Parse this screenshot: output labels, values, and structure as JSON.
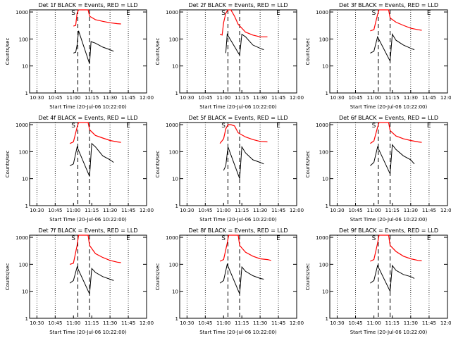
{
  "panels": [
    {
      "title": "Det 1f BLACK = Events, RED = LLD",
      "ylabel": "Counts/sec",
      "xlabel": "Start Time (20-Jul-06 10:22:00)",
      "red": [
        [
          11.0,
          300
        ],
        [
          11.03,
          320
        ],
        [
          11.05,
          900
        ],
        [
          11.07,
          1200
        ],
        [
          11.1,
          1200
        ],
        [
          11.2,
          1200
        ],
        [
          11.22,
          700
        ],
        [
          11.3,
          520
        ],
        [
          11.4,
          450
        ],
        [
          11.5,
          400
        ],
        [
          11.6,
          370
        ],
        [
          11.65,
          360
        ]
      ],
      "black": [
        [
          11.0,
          30
        ],
        [
          11.03,
          32
        ],
        [
          11.05,
          60
        ],
        [
          11.07,
          200
        ],
        [
          11.22,
          12
        ],
        [
          11.24,
          80
        ],
        [
          11.3,
          70
        ],
        [
          11.4,
          50
        ],
        [
          11.5,
          40
        ],
        [
          11.55,
          35
        ]
      ]
    },
    {
      "title": "Det 2f BLACK = Events, RED = LLD",
      "ylabel": "Counts/sec",
      "xlabel": "Start Time (20-Jul-06 10:22:00)",
      "red": [
        [
          10.95,
          150
        ],
        [
          10.98,
          140
        ],
        [
          11.0,
          400
        ],
        [
          11.03,
          900
        ],
        [
          11.06,
          1200
        ],
        [
          11.1,
          1200
        ],
        [
          11.15,
          700
        ],
        [
          11.2,
          350
        ],
        [
          11.3,
          180
        ],
        [
          11.4,
          140
        ],
        [
          11.5,
          120
        ],
        [
          11.6,
          120
        ]
      ],
      "black": [
        [
          11.03,
          30
        ],
        [
          11.05,
          150
        ],
        [
          11.22,
          25
        ],
        [
          11.25,
          150
        ],
        [
          11.3,
          120
        ],
        [
          11.4,
          60
        ],
        [
          11.5,
          45
        ],
        [
          11.55,
          40
        ]
      ]
    },
    {
      "title": "Det 3f BLACK = Events, RED = LLD",
      "ylabel": "Counts/sec",
      "xlabel": "Start Time (20-Jul-06 10:22:00)",
      "red": [
        [
          10.95,
          200
        ],
        [
          11.0,
          220
        ],
        [
          11.05,
          800
        ],
        [
          11.07,
          1200
        ],
        [
          11.1,
          1200
        ],
        [
          11.2,
          1200
        ],
        [
          11.22,
          600
        ],
        [
          11.3,
          420
        ],
        [
          11.4,
          320
        ],
        [
          11.5,
          250
        ],
        [
          11.6,
          220
        ],
        [
          11.65,
          210
        ]
      ],
      "black": [
        [
          10.95,
          30
        ],
        [
          11.0,
          35
        ],
        [
          11.05,
          120
        ],
        [
          11.22,
          15
        ],
        [
          11.25,
          150
        ],
        [
          11.3,
          90
        ],
        [
          11.4,
          60
        ],
        [
          11.5,
          45
        ],
        [
          11.55,
          40
        ]
      ]
    },
    {
      "title": "Det 4f BLACK = Events, RED = LLD",
      "ylabel": "Counts/sec",
      "xlabel": "Start Time (20-Jul-06 10:22:00)",
      "red": [
        [
          10.95,
          200
        ],
        [
          11.0,
          230
        ],
        [
          11.05,
          800
        ],
        [
          11.07,
          1200
        ],
        [
          11.1,
          1200
        ],
        [
          11.2,
          1200
        ],
        [
          11.22,
          650
        ],
        [
          11.3,
          400
        ],
        [
          11.4,
          320
        ],
        [
          11.5,
          260
        ],
        [
          11.6,
          230
        ],
        [
          11.65,
          220
        ]
      ],
      "black": [
        [
          10.95,
          30
        ],
        [
          11.0,
          35
        ],
        [
          11.05,
          150
        ],
        [
          11.22,
          12
        ],
        [
          11.25,
          200
        ],
        [
          11.3,
          150
        ],
        [
          11.4,
          70
        ],
        [
          11.5,
          50
        ],
        [
          11.55,
          40
        ]
      ]
    },
    {
      "title": "Det 5f BLACK = Events, RED = LLD",
      "ylabel": "Counts/sec",
      "xlabel": "Start Time (20-Jul-06 10:22:00)",
      "red": [
        [
          10.95,
          200
        ],
        [
          11.0,
          300
        ],
        [
          11.03,
          700
        ],
        [
          11.06,
          1000
        ],
        [
          11.1,
          1000
        ],
        [
          11.15,
          900
        ],
        [
          11.2,
          500
        ],
        [
          11.3,
          350
        ],
        [
          11.4,
          280
        ],
        [
          11.5,
          240
        ],
        [
          11.6,
          230
        ]
      ],
      "black": [
        [
          11.0,
          20
        ],
        [
          11.03,
          30
        ],
        [
          11.06,
          150
        ],
        [
          11.22,
          10
        ],
        [
          11.25,
          150
        ],
        [
          11.3,
          90
        ],
        [
          11.4,
          50
        ],
        [
          11.5,
          40
        ],
        [
          11.55,
          35
        ]
      ]
    },
    {
      "title": "Det 6f BLACK = Events, RED = LLD",
      "ylabel": "Counts/sec",
      "xlabel": "Start Time (20-Jul-06 10:22:00)",
      "red": [
        [
          10.95,
          200
        ],
        [
          11.0,
          250
        ],
        [
          11.05,
          800
        ],
        [
          11.07,
          1200
        ],
        [
          11.1,
          1200
        ],
        [
          11.2,
          1200
        ],
        [
          11.22,
          600
        ],
        [
          11.3,
          380
        ],
        [
          11.4,
          300
        ],
        [
          11.5,
          260
        ],
        [
          11.6,
          230
        ],
        [
          11.65,
          220
        ]
      ],
      "black": [
        [
          10.95,
          30
        ],
        [
          11.0,
          40
        ],
        [
          11.05,
          150
        ],
        [
          11.22,
          15
        ],
        [
          11.25,
          180
        ],
        [
          11.3,
          120
        ],
        [
          11.4,
          70
        ],
        [
          11.5,
          50
        ],
        [
          11.55,
          35
        ]
      ]
    },
    {
      "title": "Det 7f BLACK = Events, RED = LLD",
      "ylabel": "Counts/sec",
      "xlabel": "Start Time (20-Jul-06 10:22:00)",
      "red": [
        [
          10.95,
          100
        ],
        [
          11.0,
          110
        ],
        [
          11.05,
          500
        ],
        [
          11.07,
          1200
        ],
        [
          11.1,
          1200
        ],
        [
          11.2,
          1200
        ],
        [
          11.22,
          500
        ],
        [
          11.3,
          250
        ],
        [
          11.4,
          180
        ],
        [
          11.5,
          140
        ],
        [
          11.6,
          120
        ],
        [
          11.65,
          115
        ]
      ],
      "black": [
        [
          10.95,
          20
        ],
        [
          11.0,
          25
        ],
        [
          11.05,
          80
        ],
        [
          11.22,
          8
        ],
        [
          11.25,
          70
        ],
        [
          11.3,
          50
        ],
        [
          11.4,
          35
        ],
        [
          11.5,
          28
        ],
        [
          11.55,
          25
        ]
      ]
    },
    {
      "title": "Det 8f BLACK = Events, RED = LLD",
      "ylabel": "Counts/sec",
      "xlabel": "Start Time (20-Jul-06 10:22:00)",
      "red": [
        [
          10.95,
          130
        ],
        [
          11.0,
          150
        ],
        [
          11.05,
          600
        ],
        [
          11.07,
          1200
        ],
        [
          11.1,
          1200
        ],
        [
          11.2,
          1200
        ],
        [
          11.22,
          500
        ],
        [
          11.3,
          280
        ],
        [
          11.4,
          200
        ],
        [
          11.5,
          160
        ],
        [
          11.6,
          150
        ],
        [
          11.65,
          140
        ]
      ],
      "black": [
        [
          10.95,
          20
        ],
        [
          11.0,
          25
        ],
        [
          11.05,
          100
        ],
        [
          11.22,
          8
        ],
        [
          11.25,
          80
        ],
        [
          11.3,
          55
        ],
        [
          11.4,
          38
        ],
        [
          11.5,
          30
        ],
        [
          11.55,
          28
        ]
      ]
    },
    {
      "title": "Det 9f BLACK = Events, RED = LLD",
      "ylabel": "Counts/sec",
      "xlabel": "Start Time (20-Jul-06 10:22:00)",
      "red": [
        [
          10.95,
          130
        ],
        [
          11.0,
          150
        ],
        [
          11.05,
          600
        ],
        [
          11.07,
          1200
        ],
        [
          11.1,
          1200
        ],
        [
          11.2,
          1200
        ],
        [
          11.22,
          500
        ],
        [
          11.3,
          300
        ],
        [
          11.4,
          200
        ],
        [
          11.5,
          160
        ],
        [
          11.6,
          140
        ],
        [
          11.65,
          135
        ]
      ],
      "black": [
        [
          10.95,
          20
        ],
        [
          11.0,
          25
        ],
        [
          11.05,
          90
        ],
        [
          11.22,
          10
        ],
        [
          11.25,
          90
        ],
        [
          11.3,
          60
        ],
        [
          11.4,
          42
        ],
        [
          11.5,
          35
        ],
        [
          11.55,
          30
        ]
      ]
    }
  ],
  "chart_data": {
    "type": "line",
    "layout": "3x3 grid of panels",
    "xticks": [
      "10:30",
      "10:45",
      "11:00",
      "11:15",
      "11:30",
      "11:45",
      "12:00"
    ],
    "yticks": [
      "1",
      "10",
      "100",
      "1000"
    ],
    "yscale": "log",
    "ylim": [
      1,
      1200
    ],
    "series_colors": {
      "black": "#000000",
      "red": "#ff0000"
    },
    "markers": [
      "S",
      "E"
    ]
  }
}
